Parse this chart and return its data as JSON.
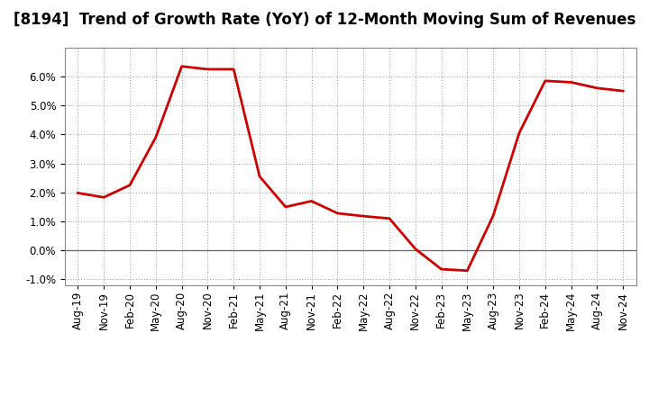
{
  "title": "[8194]  Trend of Growth Rate (YoY) of 12-Month Moving Sum of Revenues",
  "x_labels": [
    "Aug-19",
    "Nov-19",
    "Feb-20",
    "May-20",
    "Aug-20",
    "Nov-20",
    "Feb-21",
    "May-21",
    "Aug-21",
    "Nov-21",
    "Feb-22",
    "May-22",
    "Aug-22",
    "Nov-22",
    "Feb-23",
    "May-23",
    "Aug-23",
    "Nov-23",
    "Feb-24",
    "May-24",
    "Aug-24",
    "Nov-24"
  ],
  "x_values": [
    0,
    3,
    6,
    9,
    12,
    15,
    18,
    21,
    24,
    27,
    30,
    33,
    36,
    39,
    42,
    45,
    48,
    51,
    54,
    57,
    60,
    63
  ],
  "y_values": [
    1.98,
    1.83,
    2.25,
    3.9,
    6.35,
    6.25,
    6.25,
    2.55,
    1.5,
    1.7,
    1.28,
    1.18,
    1.1,
    0.05,
    -0.65,
    -0.7,
    1.2,
    4.05,
    5.85,
    5.8,
    5.6,
    5.5
  ],
  "line_color": "#cc0000",
  "line_width": 2.0,
  "ylim": [
    -1.2,
    7.0
  ],
  "yticks": [
    -1.0,
    0.0,
    1.0,
    2.0,
    3.0,
    4.0,
    5.0,
    6.0
  ],
  "background_color": "#ffffff",
  "grid_color": "#999999",
  "title_fontsize": 12,
  "tick_fontsize": 8.5
}
